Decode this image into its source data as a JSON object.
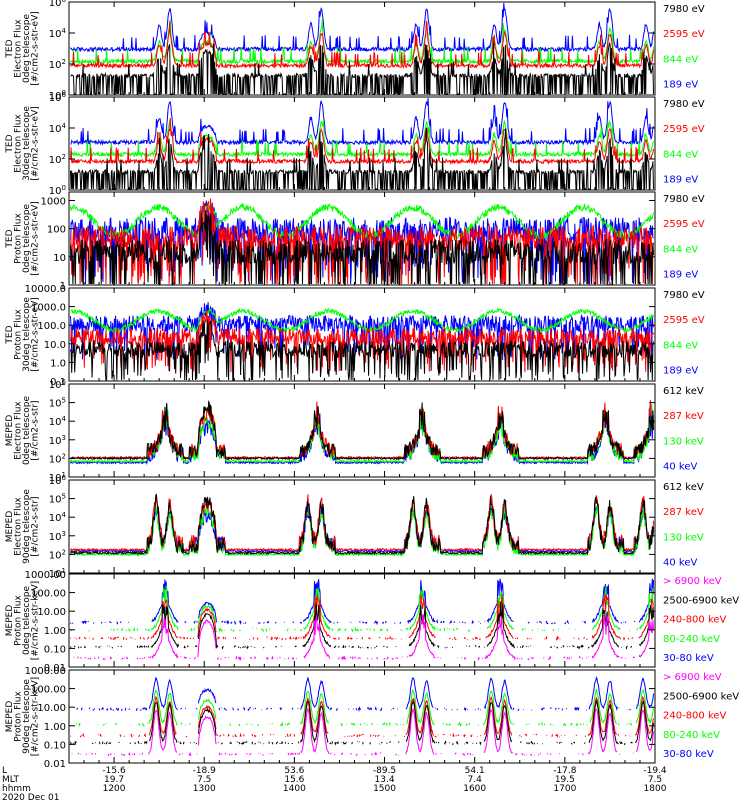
{
  "chart_data": {
    "type": "line",
    "title": "",
    "date": "2020 Dec 01",
    "colors": {
      "black": "#000000",
      "red": "#ff0000",
      "green": "#00ff00",
      "blue": "#0000ff",
      "magenta": "#ff00ff"
    },
    "x_axis": {
      "range": [
        1130,
        1800
      ],
      "rows": [
        {
          "label": "L",
          "ticks": [
            "-15.6",
            "-18.9",
            "53.6",
            "-89.5",
            "54.1",
            "-17.8",
            "-19.4"
          ]
        },
        {
          "label": "MLT",
          "ticks": [
            "19.7",
            "7.5",
            "15.6",
            "13.4",
            "7.4",
            "19.5",
            "7.5"
          ]
        },
        {
          "label": "hhmm",
          "ticks": [
            "1200",
            "1300",
            "1400",
            "1500",
            "1600",
            "1700",
            "1800"
          ]
        }
      ],
      "tick_hhmm": [
        1200,
        1300,
        1400,
        1500,
        1600,
        1700,
        1800
      ]
    },
    "panels": [
      {
        "ylabel": [
          "TED",
          "Electron Flux",
          "0deg telescope",
          "[#/cm2-s-str-eV]"
        ],
        "yscale": "log",
        "ylim": [
          1,
          1000000
        ],
        "yticks": [
          {
            "value": 1,
            "label": "10",
            "exp": "0"
          },
          {
            "value": 100,
            "label": "10",
            "exp": "2"
          },
          {
            "value": 10000,
            "label": "10",
            "exp": "4"
          },
          {
            "value": 1000000,
            "label": "10",
            "exp": "6"
          }
        ],
        "pattern": "ted",
        "series": [
          {
            "name": "7980 eV",
            "color": "#000000",
            "level": 18
          },
          {
            "name": "2595 eV",
            "color": "#ff0000",
            "level": 80
          },
          {
            "name": "844 eV",
            "color": "#00ff00",
            "level": 150
          },
          {
            "name": "189 eV",
            "color": "#0000ff",
            "level": 900
          }
        ]
      },
      {
        "ylabel": [
          "TED",
          "Electron Flux",
          "30deg telescope",
          "[#/cm2-s-str-eV]"
        ],
        "yscale": "log",
        "ylim": [
          1,
          1000000
        ],
        "yticks": [
          {
            "value": 1,
            "label": "10",
            "exp": "0"
          },
          {
            "value": 100,
            "label": "10",
            "exp": "2"
          },
          {
            "value": 10000,
            "label": "10",
            "exp": "4"
          },
          {
            "value": 1000000,
            "label": "10",
            "exp": "6"
          }
        ],
        "pattern": "ted",
        "series": [
          {
            "name": "7980 eV",
            "color": "#000000",
            "level": 15
          },
          {
            "name": "2595 eV",
            "color": "#ff0000",
            "level": 70
          },
          {
            "name": "844 eV",
            "color": "#00ff00",
            "level": 200
          },
          {
            "name": "189 eV",
            "color": "#0000ff",
            "level": 1200
          }
        ]
      },
      {
        "ylabel": [
          "TED",
          "Proton Flux",
          "0deg telescope",
          "[#/cm2-s-str-eV]"
        ],
        "yscale": "log",
        "ylim": [
          1,
          2000
        ],
        "yticks": [
          {
            "value": 1,
            "label": "1"
          },
          {
            "value": 10,
            "label": "10"
          },
          {
            "value": 100,
            "label": "100"
          },
          {
            "value": 1000,
            "label": "1000"
          }
        ],
        "pattern": "proton",
        "series": [
          {
            "name": "7980 eV",
            "color": "#000000",
            "level": 15
          },
          {
            "name": "2595 eV",
            "color": "#ff0000",
            "level": 45
          },
          {
            "name": "844 eV",
            "color": "#00ff00",
            "level": 180
          },
          {
            "name": "189 eV",
            "color": "#0000ff",
            "level": 90
          }
        ]
      },
      {
        "ylabel": [
          "TED",
          "Proton Flux",
          "30deg telescope",
          "[#/cm2-s-str-eV]"
        ],
        "yscale": "log",
        "ylim": [
          0.1,
          10000
        ],
        "yticks": [
          {
            "value": 0.1,
            "label": "0.1"
          },
          {
            "value": 1,
            "label": "1.0"
          },
          {
            "value": 10,
            "label": "10.0"
          },
          {
            "value": 100,
            "label": "100.0"
          },
          {
            "value": 1000,
            "label": "1000.0"
          },
          {
            "value": 10000,
            "label": "10000.0"
          }
        ],
        "pattern": "proton",
        "series": [
          {
            "name": "7980 eV",
            "color": "#000000",
            "level": 5
          },
          {
            "name": "2595 eV",
            "color": "#ff0000",
            "level": 25
          },
          {
            "name": "844 eV",
            "color": "#00ff00",
            "level": 180
          },
          {
            "name": "189 eV",
            "color": "#0000ff",
            "level": 120
          }
        ]
      },
      {
        "ylabel": [
          "MEPED",
          "Electron Flux",
          "0deg telescope",
          "[#/cm2-s-str]"
        ],
        "yscale": "log",
        "ylim": [
          10,
          1000000
        ],
        "yticks": [
          {
            "value": 10,
            "label": "10",
            "exp": "1"
          },
          {
            "value": 100,
            "label": "10",
            "exp": "2"
          },
          {
            "value": 1000,
            "label": "10",
            "exp": "3"
          },
          {
            "value": 10000,
            "label": "10",
            "exp": "4"
          },
          {
            "value": 100000,
            "label": "10",
            "exp": "5"
          },
          {
            "value": 1000000,
            "label": "10",
            "exp": "6"
          }
        ],
        "pattern": "meped0",
        "series": [
          {
            "name": "612 keV",
            "color": "#000000",
            "level": 100
          },
          {
            "name": "287 keV",
            "color": "#ff0000",
            "level": 110
          },
          {
            "name": "130 keV",
            "color": "#00ff00",
            "level": 70
          },
          {
            "name": "40 keV",
            "color": "#0000ff",
            "level": 60
          }
        ]
      },
      {
        "ylabel": [
          "MEPED",
          "Electron Flux",
          "90deg telescope",
          "[#/cm2-s-str]"
        ],
        "yscale": "log",
        "ylim": [
          10,
          1000000
        ],
        "yticks": [
          {
            "value": 10,
            "label": "10",
            "exp": "1"
          },
          {
            "value": 100,
            "label": "10",
            "exp": "2"
          },
          {
            "value": 1000,
            "label": "10",
            "exp": "3"
          },
          {
            "value": 10000,
            "label": "10",
            "exp": "4"
          },
          {
            "value": 100000,
            "label": "10",
            "exp": "5"
          },
          {
            "value": 1000000,
            "label": "10",
            "exp": "6"
          }
        ],
        "pattern": "meped90",
        "series": [
          {
            "name": "612 keV",
            "color": "#000000",
            "level": 120
          },
          {
            "name": "287 keV",
            "color": "#ff0000",
            "level": 180
          },
          {
            "name": "130 keV",
            "color": "#00ff00",
            "level": 100
          },
          {
            "name": "40 keV",
            "color": "#0000ff",
            "level": 150
          }
        ]
      },
      {
        "ylabel": [
          "MEPED",
          "Proton Flux",
          "0deg telescope",
          "[#/cm2-s-str-keV]"
        ],
        "yscale": "log",
        "ylim": [
          0.01,
          1000
        ],
        "yticks": [
          {
            "value": 0.01,
            "label": "0.01"
          },
          {
            "value": 0.1,
            "label": "0.10"
          },
          {
            "value": 1,
            "label": "1.00"
          },
          {
            "value": 10,
            "label": "10.00"
          },
          {
            "value": 100,
            "label": "100.00"
          },
          {
            "value": 1000,
            "label": "1000.00"
          }
        ],
        "pattern": "mepedp0",
        "series": [
          {
            "name": "> 6900 keV",
            "color": "#ff00ff",
            "level": 0.03
          },
          {
            "name": "2500-6900 keV",
            "color": "#000000",
            "level": 0.12
          },
          {
            "name": "240-800 keV",
            "color": "#ff0000",
            "level": 0.35
          },
          {
            "name": "80-240 keV",
            "color": "#00ff00",
            "level": 1.0
          },
          {
            "name": "30-80 keV",
            "color": "#0000ff",
            "level": 2.5
          }
        ]
      },
      {
        "ylabel": [
          "MEPED",
          "Proton Flux",
          "90deg telescope",
          "[#/cm2-s-str-keV]"
        ],
        "yscale": "log",
        "ylim": [
          0.01,
          1000
        ],
        "yticks": [
          {
            "value": 0.01,
            "label": "0.01"
          },
          {
            "value": 0.1,
            "label": "0.10"
          },
          {
            "value": 1,
            "label": "1.00"
          },
          {
            "value": 10,
            "label": "10.00"
          },
          {
            "value": 100,
            "label": "100.00"
          },
          {
            "value": 1000,
            "label": "1000.00"
          }
        ],
        "pattern": "mepedp90",
        "series": [
          {
            "name": "> 6900 keV",
            "color": "#ff00ff",
            "level": 0.03
          },
          {
            "name": "2500-6900 keV",
            "color": "#000000",
            "level": 0.12
          },
          {
            "name": "240-800 keV",
            "color": "#ff0000",
            "level": 0.3
          },
          {
            "name": "80-240 keV",
            "color": "#00ff00",
            "level": 1.2
          },
          {
            "name": "30-80 keV",
            "color": "#0000ff",
            "level": 8
          }
        ]
      }
    ],
    "passes": [
      {
        "t": 1234,
        "kind": "pole"
      },
      {
        "t": 1302,
        "kind": "saa"
      },
      {
        "t": 1415,
        "kind": "pole"
      },
      {
        "t": 1525,
        "kind": "pole"
      },
      {
        "t": 1617,
        "kind": "pole"
      },
      {
        "t": 1727,
        "kind": "pole"
      },
      {
        "t": 1758,
        "kind": "pole"
      }
    ]
  }
}
